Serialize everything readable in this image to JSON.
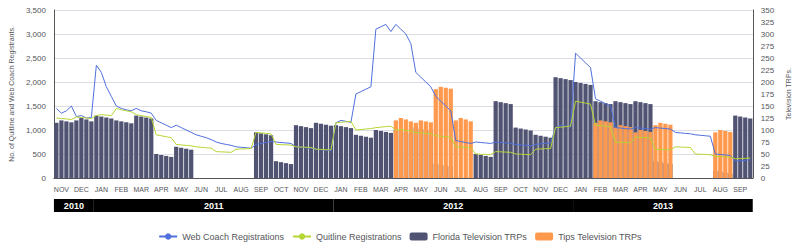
{
  "chart_data": {
    "type": "bar",
    "categories": [
      null,
      "NOV",
      null,
      null,
      null,
      "DEC",
      null,
      null,
      null,
      "JAN",
      null,
      null,
      null,
      "FEB",
      null,
      null,
      null,
      "MAR",
      null,
      null,
      null,
      "APR",
      null,
      null,
      null,
      "MAY",
      null,
      null,
      null,
      "JUN",
      null,
      null,
      null,
      "JUL",
      null,
      null,
      null,
      "AUG",
      null,
      null,
      null,
      "SEP",
      null,
      null,
      null,
      "OCT",
      null,
      null,
      null,
      "NOV",
      null,
      null,
      null,
      "DEC",
      null,
      null,
      null,
      "JAN",
      null,
      null,
      null,
      "FEB",
      null,
      null,
      null,
      "MAR",
      null,
      null,
      null,
      "APR",
      null,
      null,
      null,
      "MAY",
      null,
      null,
      null,
      "JUN",
      null,
      null,
      null,
      "JUL",
      null,
      null,
      null,
      "AUG",
      null,
      null,
      null,
      "SEP",
      null,
      null,
      null,
      "OCT",
      null,
      null,
      null,
      "NOV",
      null,
      null,
      null,
      "DEC",
      null,
      null,
      null,
      "JAN",
      null,
      null,
      null,
      "FEB",
      null,
      null,
      null,
      "MAR",
      null,
      null,
      null,
      "APR",
      null,
      null,
      null,
      "MAY",
      null,
      null,
      null,
      "JUN",
      null,
      null,
      null,
      "JUL",
      null,
      null,
      null,
      "AUG",
      null,
      null,
      null,
      "SEP",
      null,
      null
    ],
    "series": [
      {
        "name": "Web Coach Registrations",
        "type": "line",
        "values": [
          1450,
          1350,
          1400,
          1500,
          1280,
          1300,
          1250,
          1260,
          2350,
          2200,
          1900,
          1700,
          1500,
          1450,
          1420,
          1400,
          1450,
          1400,
          1380,
          1350,
          1200,
          1150,
          1100,
          1050,
          1100,
          1050,
          1000,
          950,
          900,
          870,
          840,
          800,
          750,
          720,
          700,
          680,
          650,
          640,
          630,
          620,
          700,
          720,
          740,
          760,
          750,
          740,
          730,
          720,
          650,
          640,
          630,
          620,
          600,
          590,
          580,
          570,
          1150,
          1200,
          1180,
          1160,
          1750,
          1800,
          1850,
          1900,
          3100,
          3150,
          3200,
          3050,
          3200,
          3100,
          3000,
          2800,
          2200,
          2100,
          2000,
          1900,
          1700,
          1600,
          1500,
          1400,
          780,
          760,
          740,
          720,
          750,
          740,
          730,
          720,
          750,
          740,
          730,
          720,
          700,
          690,
          680,
          670,
          700,
          710,
          720,
          730,
          1050,
          1100,
          1080,
          1060,
          2600,
          2500,
          2400,
          2300,
          1650,
          1600,
          1550,
          1500,
          1050,
          1040,
          1030,
          1020,
          1050,
          1040,
          1030,
          1020,
          1050,
          1040,
          1030,
          1020,
          950,
          940,
          930,
          920,
          900,
          890,
          880,
          870,
          500,
          490,
          480,
          470,
          350,
          360,
          370,
          380
        ]
      },
      {
        "name": "Quitline Registrations",
        "type": "line",
        "values": [
          1250,
          1240,
          1230,
          1220,
          1270,
          1260,
          1250,
          1240,
          1300,
          1320,
          1310,
          1300,
          1450,
          1420,
          1400,
          1380,
          1320,
          1300,
          1280,
          1260,
          900,
          880,
          860,
          840,
          700,
          690,
          680,
          670,
          650,
          640,
          630,
          620,
          550,
          545,
          540,
          535,
          600,
          605,
          610,
          615,
          950,
          940,
          930,
          920,
          700,
          695,
          690,
          685,
          650,
          645,
          640,
          635,
          600,
          595,
          590,
          585,
          1150,
          1160,
          1170,
          1180,
          1000,
          1010,
          1020,
          1030,
          1050,
          1060,
          1070,
          1080,
          1000,
          1010,
          990,
          980,
          950,
          940,
          930,
          920,
          880,
          870,
          860,
          850,
          650,
          645,
          640,
          635,
          500,
          495,
          490,
          485,
          550,
          545,
          540,
          535,
          500,
          495,
          490,
          485,
          600,
          605,
          610,
          615,
          1050,
          1060,
          1070,
          1080,
          1600,
          1580,
          1560,
          1540,
          1100,
          1090,
          1080,
          1070,
          750,
          745,
          740,
          735,
          850,
          845,
          840,
          835,
          600,
          595,
          590,
          585,
          650,
          645,
          640,
          635,
          500,
          495,
          490,
          485,
          450,
          445,
          440,
          435,
          400,
          405,
          410,
          415
        ]
      },
      {
        "name": "Florida Television TRPs",
        "type": "bar",
        "axis": "y2",
        "values": [
          115,
          120,
          118,
          116,
          120,
          125,
          122,
          118,
          130,
          128,
          126,
          124,
          120,
          118,
          116,
          114,
          130,
          128,
          126,
          124,
          50,
          48,
          46,
          44,
          65,
          63,
          61,
          59,
          0,
          0,
          0,
          0,
          0,
          0,
          0,
          0,
          0,
          0,
          0,
          0,
          95,
          93,
          91,
          89,
          35,
          33,
          31,
          29,
          110,
          108,
          106,
          104,
          115,
          113,
          111,
          109,
          110,
          108,
          106,
          104,
          90,
          88,
          86,
          84,
          100,
          98,
          96,
          94,
          100,
          98,
          96,
          94,
          105,
          103,
          101,
          99,
          30,
          28,
          26,
          24,
          0,
          0,
          0,
          0,
          50,
          48,
          46,
          44,
          160,
          158,
          156,
          154,
          105,
          103,
          101,
          99,
          90,
          88,
          86,
          84,
          210,
          208,
          206,
          204,
          200,
          198,
          196,
          194,
          160,
          158,
          156,
          154,
          160,
          158,
          156,
          154,
          160,
          158,
          156,
          154,
          35,
          33,
          31,
          29,
          0,
          0,
          0,
          0,
          0,
          0,
          0,
          0,
          15,
          13,
          11,
          9,
          130,
          128,
          126,
          124
        ]
      },
      {
        "name": "Tips Television TRPs",
        "type": "bar",
        "axis": "y2",
        "values": [
          0,
          0,
          0,
          0,
          0,
          0,
          0,
          0,
          0,
          0,
          0,
          0,
          0,
          0,
          0,
          0,
          0,
          0,
          0,
          0,
          0,
          0,
          0,
          0,
          0,
          0,
          0,
          0,
          0,
          0,
          0,
          0,
          0,
          0,
          0,
          0,
          0,
          0,
          0,
          0,
          0,
          0,
          0,
          0,
          0,
          0,
          0,
          0,
          0,
          0,
          0,
          0,
          0,
          0,
          0,
          0,
          0,
          0,
          0,
          0,
          0,
          0,
          0,
          0,
          0,
          0,
          0,
          0,
          120,
          125,
          122,
          118,
          115,
          120,
          118,
          116,
          185,
          190,
          188,
          186,
          120,
          125,
          122,
          118,
          0,
          0,
          0,
          0,
          0,
          0,
          0,
          0,
          0,
          0,
          0,
          0,
          0,
          0,
          0,
          0,
          0,
          0,
          0,
          0,
          0,
          0,
          0,
          0,
          115,
          120,
          118,
          116,
          105,
          110,
          108,
          106,
          95,
          100,
          98,
          96,
          110,
          115,
          113,
          111,
          0,
          0,
          0,
          0,
          0,
          0,
          0,
          0,
          95,
          100,
          98,
          96,
          0,
          0,
          0,
          0
        ]
      }
    ],
    "ylabel": "No. of Quitline and Web Coach Registrants.",
    "y2label": "Television TRPs.",
    "ylim": [
      0,
      3500
    ],
    "yticks": [
      0,
      500,
      {
        "value": 1000,
        "label": "1,000"
      },
      {
        "value": 1500,
        "label": "1,500"
      },
      {
        "value": 2000,
        "label": "2,000"
      },
      {
        "value": 2500,
        "label": "2,500"
      },
      {
        "value": 3000,
        "label": "3,000"
      },
      {
        "value": 3500,
        "label": "3,500"
      }
    ],
    "y2lim": [
      0,
      350
    ],
    "y2ticks": [
      0,
      25,
      50,
      75,
      100,
      125,
      150,
      175,
      200,
      225,
      250,
      275,
      300,
      325,
      350
    ],
    "annotations": [
      {
        "text": "2010",
        "start": 0,
        "end": 7
      },
      {
        "text": "2011",
        "start": 8,
        "end": 55
      },
      {
        "text": "2012",
        "start": 56,
        "end": 103
      },
      {
        "text": "2013",
        "start": 104,
        "end": 139
      }
    ],
    "grid": true,
    "legend": "bottom"
  }
}
